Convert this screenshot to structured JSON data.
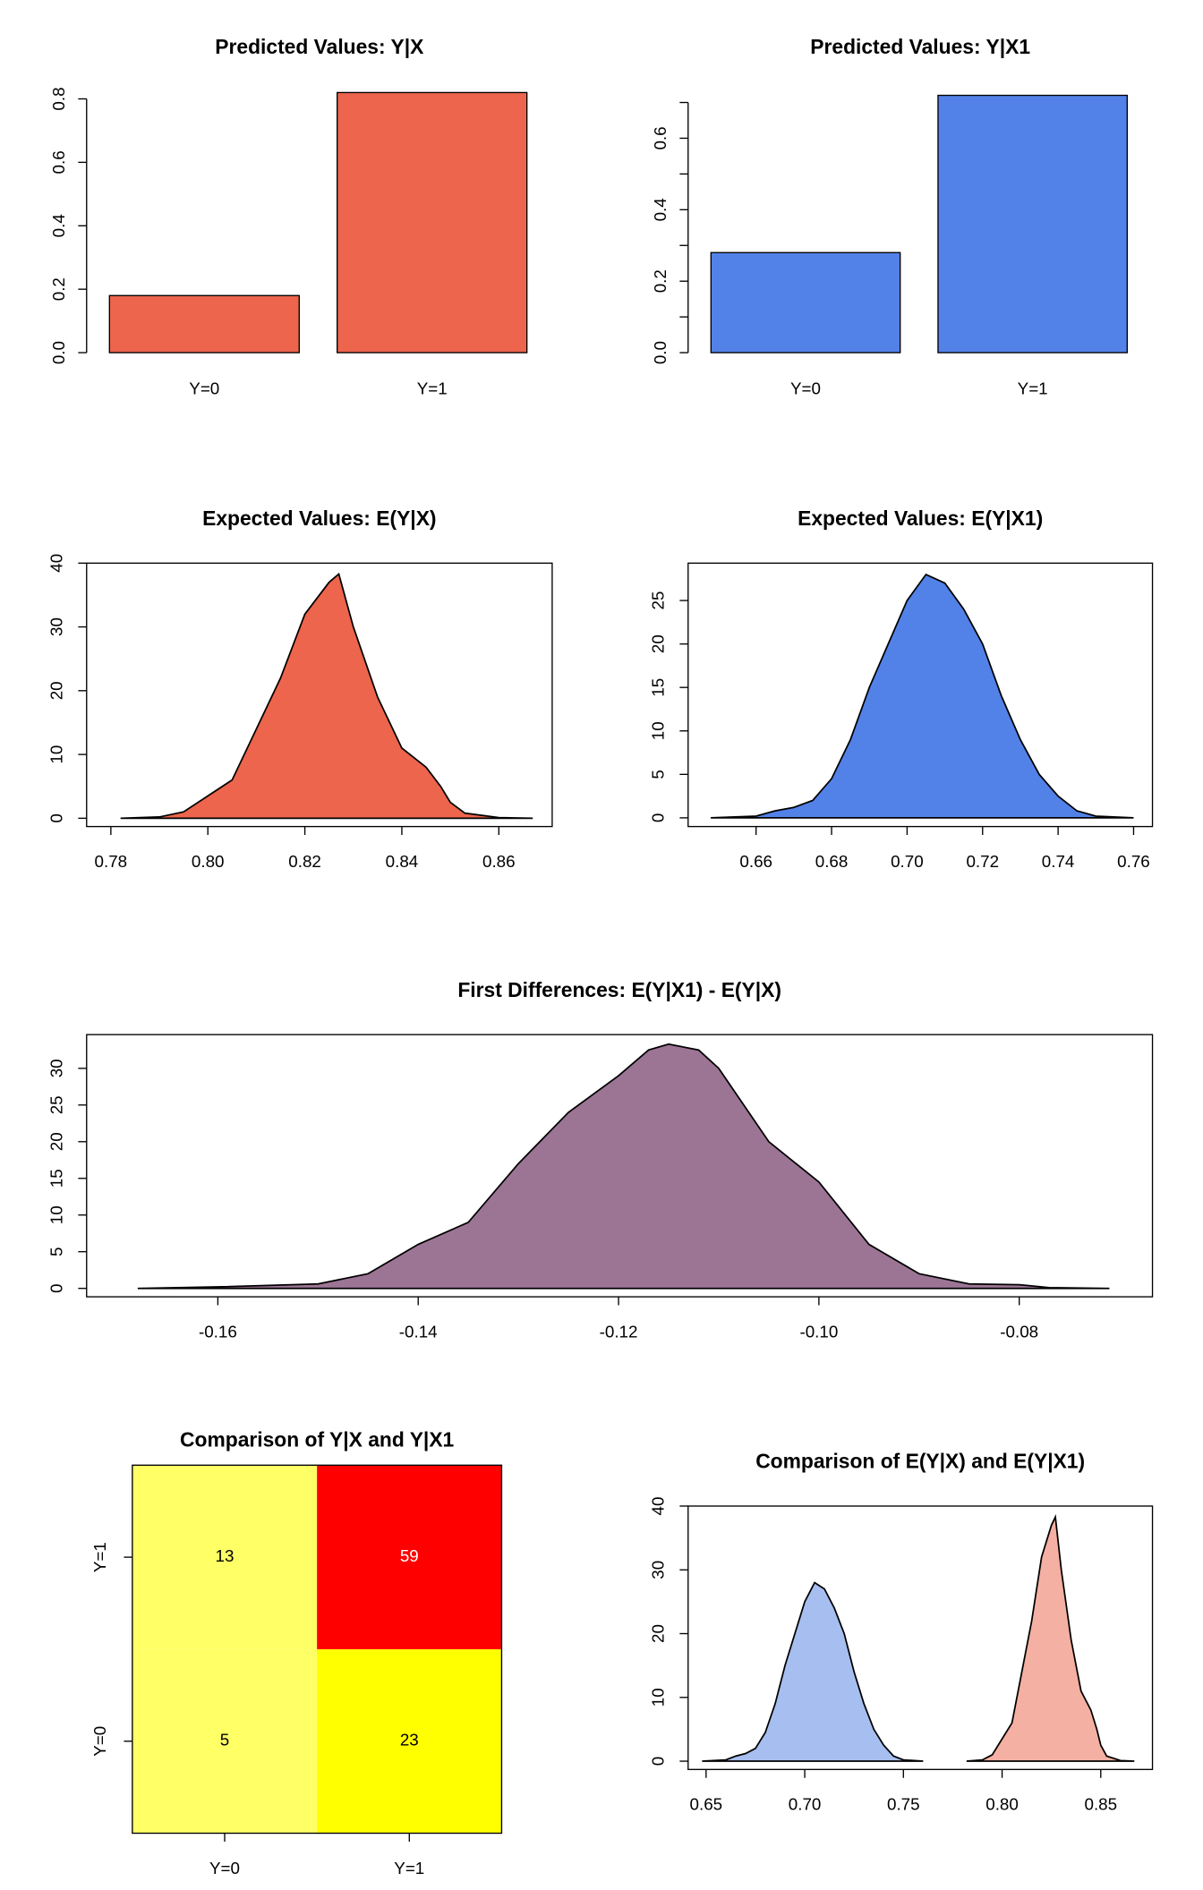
{
  "chart_data": [
    {
      "type": "bar",
      "title": "Predicted Values: Y|X",
      "categories": [
        "Y=0",
        "Y=1"
      ],
      "values": [
        0.18,
        0.82
      ],
      "color": "#ec654c",
      "ylim": [
        0,
        0.8
      ],
      "yticks": [
        {
          "value": 0,
          "label": "0.0"
        },
        0.2,
        0.4,
        0.6,
        0.8
      ],
      "yminorticks": []
    },
    {
      "type": "bar",
      "title": "Predicted Values: Y|X1",
      "categories": [
        "Y=0",
        "Y=1"
      ],
      "values": [
        0.28,
        0.72
      ],
      "color": "#5282e8",
      "ylim": [
        0,
        0.7
      ],
      "yticks": [
        {
          "value": 0,
          "label": "0.0"
        },
        0.2,
        0.4,
        0.6
      ],
      "yminorticks": [
        0.1,
        0.3,
        0.5,
        0.7
      ]
    },
    {
      "type": "density",
      "title": "Expected Values: E(Y|X)",
      "series": [
        {
          "color": "#ec654c",
          "x": [
            0.782,
            0.79,
            0.795,
            0.8,
            0.805,
            0.81,
            0.815,
            0.82,
            0.825,
            0.827,
            0.83,
            0.835,
            0.84,
            0.845,
            0.848,
            0.85,
            0.853,
            0.86,
            0.867
          ],
          "values": [
            0,
            0.2,
            1,
            3.5,
            6,
            14,
            22,
            32,
            37,
            38.3,
            30,
            19,
            11,
            8,
            5,
            2.5,
            0.8,
            0.1,
            0
          ]
        }
      ],
      "xlim": [
        0.775,
        0.871
      ],
      "ylim": [
        -1.3,
        40
      ],
      "xticks": [
        0.78,
        {
          "value": 0.8,
          "label": "0.80"
        },
        0.82,
        0.84,
        0.86
      ],
      "yticks": [
        0,
        10,
        20,
        30,
        40
      ]
    },
    {
      "type": "density",
      "title": "Expected Values: E(Y|X1)",
      "series": [
        {
          "color": "#5282e8",
          "x": [
            0.648,
            0.66,
            0.665,
            0.67,
            0.675,
            0.68,
            0.685,
            0.69,
            0.695,
            0.7,
            0.705,
            0.71,
            0.715,
            0.72,
            0.725,
            0.73,
            0.735,
            0.74,
            0.745,
            0.75,
            0.76
          ],
          "values": [
            0,
            0.2,
            0.8,
            1.2,
            2,
            4.5,
            9,
            15,
            20,
            25,
            28,
            27,
            24,
            20,
            14,
            9,
            5,
            2.5,
            0.8,
            0.2,
            0
          ]
        }
      ],
      "xlim": [
        0.642,
        0.765
      ],
      "ylim": [
        -1,
        29.3
      ],
      "xticks": [
        0.66,
        0.68,
        {
          "value": 0.7,
          "label": "0.70"
        },
        0.72,
        0.74,
        0.76
      ],
      "yticks": [
        0,
        5,
        10,
        15,
        20,
        25
      ]
    },
    {
      "type": "density",
      "title": "First Differences: E(Y|X1) - E(Y|X)",
      "series": [
        {
          "color": "#9c7595",
          "x": [
            -0.168,
            -0.16,
            -0.15,
            -0.145,
            -0.14,
            -0.135,
            -0.13,
            -0.125,
            -0.12,
            -0.117,
            -0.115,
            -0.112,
            -0.11,
            -0.105,
            -0.1,
            -0.095,
            -0.09,
            -0.085,
            -0.08,
            -0.077,
            -0.071
          ],
          "values": [
            0,
            0.2,
            0.6,
            2,
            6,
            9,
            17,
            24,
            29,
            32.5,
            33.3,
            32.5,
            30,
            20,
            14.5,
            6,
            2,
            0.6,
            0.5,
            0.1,
            0
          ]
        }
      ],
      "xlim": [
        -0.1731,
        -0.0667
      ],
      "ylim": [
        -1.15,
        34.6
      ],
      "xticks": [
        -0.16,
        -0.14,
        -0.12,
        {
          "value": -0.1,
          "label": "-0.10"
        },
        -0.08
      ],
      "yticks": [
        0,
        5,
        10,
        15,
        20,
        25,
        30
      ]
    },
    {
      "type": "heatmap",
      "title": "Comparison of Y|X and Y|X1",
      "x_categories": [
        "Y=0",
        "Y=1"
      ],
      "y_categories": [
        "Y=0",
        "Y=1"
      ],
      "values": [
        [
          5,
          23
        ],
        [
          13,
          59
        ]
      ],
      "colors": [
        [
          "#ffff66",
          "#ffff00"
        ],
        [
          "#ffff66",
          "#ff0000"
        ]
      ]
    },
    {
      "type": "density",
      "title": "Comparison of E(Y|X) and E(Y|X1)",
      "series": [
        {
          "color": "#a7bef0",
          "x": [
            0.648,
            0.66,
            0.665,
            0.67,
            0.675,
            0.68,
            0.685,
            0.69,
            0.695,
            0.7,
            0.705,
            0.71,
            0.715,
            0.72,
            0.725,
            0.73,
            0.735,
            0.74,
            0.745,
            0.75,
            0.76
          ],
          "values": [
            0,
            0.2,
            0.8,
            1.2,
            2,
            4.5,
            9,
            15,
            20,
            25,
            28,
            27,
            24,
            20,
            14,
            9,
            5,
            2.5,
            0.8,
            0.2,
            0
          ]
        },
        {
          "color": "#f4b0a2",
          "x": [
            0.782,
            0.79,
            0.795,
            0.8,
            0.805,
            0.81,
            0.815,
            0.82,
            0.825,
            0.827,
            0.83,
            0.835,
            0.84,
            0.845,
            0.848,
            0.85,
            0.853,
            0.86,
            0.867
          ],
          "values": [
            0,
            0.2,
            1,
            3.5,
            6,
            14,
            22,
            32,
            37,
            38.3,
            30,
            19,
            11,
            8,
            5,
            2.5,
            0.8,
            0.1,
            0
          ]
        }
      ],
      "xlim": [
        0.6409,
        0.8762
      ],
      "ylim": [
        -1.3,
        40
      ],
      "xticks": [
        0.65,
        {
          "value": 0.7,
          "label": "0.70"
        },
        0.75,
        {
          "value": 0.8,
          "label": "0.80"
        },
        0.85
      ],
      "yticks": [
        0,
        10,
        20,
        30,
        40
      ]
    }
  ]
}
